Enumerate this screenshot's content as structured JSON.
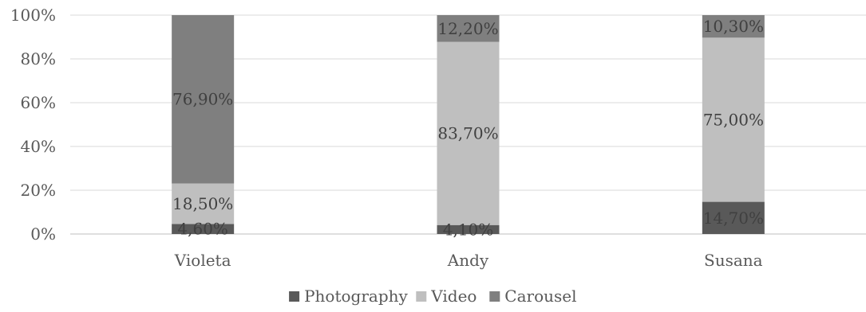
{
  "chart_data": {
    "type": "bar",
    "stacked": "percent",
    "categories": [
      "Violeta",
      "Andy",
      "Susana"
    ],
    "series": [
      {
        "name": "Photography",
        "values": [
          4.6,
          4.1,
          14.7
        ],
        "labels": [
          "4,60%",
          "4,10%",
          "14,70%"
        ],
        "color": "#595959"
      },
      {
        "name": "Video",
        "values": [
          18.5,
          83.7,
          75.0
        ],
        "labels": [
          "18,50%",
          "83,70%",
          "75,00%"
        ],
        "color": "#bfbfbf"
      },
      {
        "name": "Carousel",
        "values": [
          76.9,
          12.2,
          10.3
        ],
        "labels": [
          "76,90%",
          "12,20%",
          "10,30%"
        ],
        "color": "#7f7f7f"
      }
    ],
    "yticks": [
      "0%",
      "20%",
      "40%",
      "60%",
      "80%",
      "100%"
    ],
    "ylim": [
      0,
      100
    ],
    "grid": true,
    "legend_position": "bottom",
    "title": "",
    "xlabel": "",
    "ylabel": ""
  }
}
